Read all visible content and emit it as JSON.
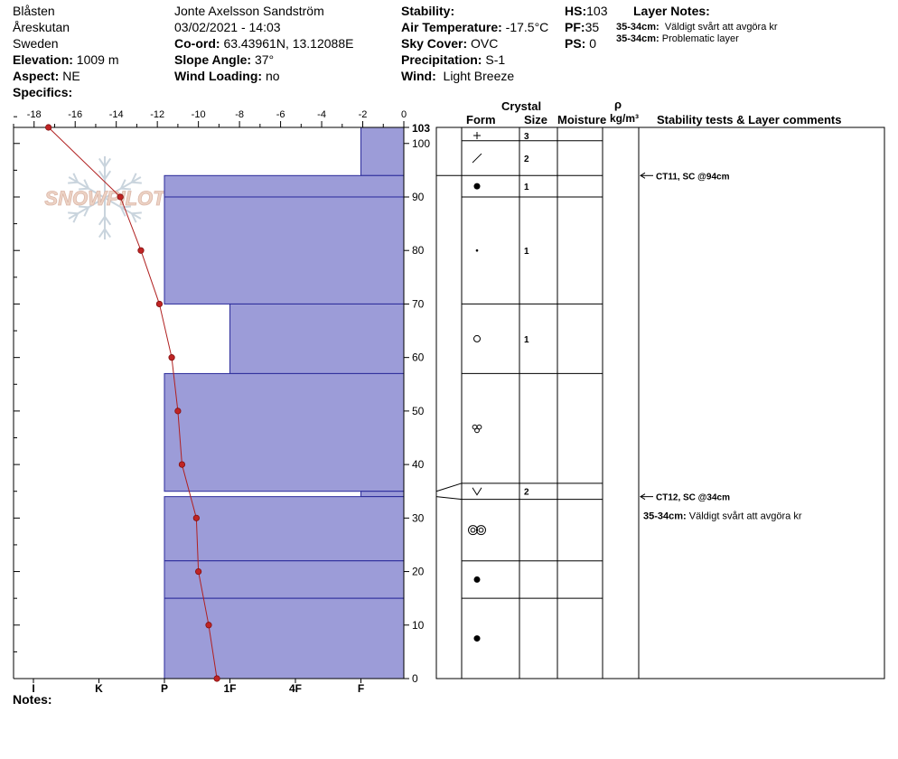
{
  "header": {
    "location": "Blåsten",
    "area": "Åreskutan",
    "country": "Sweden",
    "elevation_label": "Elevation:",
    "elevation": "1009 m",
    "aspect_label": "Aspect:",
    "aspect": "NE",
    "specifics_label": "Specifics:",
    "observer": "Jonte Axelsson Sandström",
    "datetime": "03/02/2021 - 14:03",
    "coord_label": "Co-ord:",
    "coord": "63.43961N, 13.12088E",
    "slope_label": "Slope Angle:",
    "slope": "37°",
    "wind_loading_label": "Wind Loading:",
    "wind_loading": "no",
    "stability_label": "Stability:",
    "stability": "",
    "air_temp_label": "Air Temperature:",
    "air_temp": "-17.5°C",
    "sky_label": "Sky Cover:",
    "sky": "OVC",
    "precip_label": "Precipitation:",
    "precip": "S-1",
    "wind_label": "Wind:",
    "wind": "Light Breeze",
    "hs_label": "HS:",
    "hs": "103",
    "pf_label": "PF:",
    "pf": "35",
    "ps_label": "PS:",
    "ps": "0",
    "layer_notes_label": "Layer Notes:",
    "layer_notes": [
      {
        "range": "35-34cm:",
        "text": "Väldigt svårt att avgöra kr"
      },
      {
        "range": "35-34cm:",
        "text": "Problematic layer"
      }
    ]
  },
  "watermark": "SNOWPILOT",
  "notes_label": "Notes:",
  "table": {
    "crystal_label": "Crystal",
    "form_label": "Form",
    "size_label": "Size",
    "moisture_label": "Moisture",
    "rho_label": "ρ",
    "density_unit": "kg/m³",
    "stability_label": "Stability tests & Layer comments"
  },
  "chart_data": {
    "type": "snow-profile",
    "temp_axis": {
      "ticks": [
        -18,
        -16,
        -14,
        -12,
        -10,
        -8,
        -6,
        -4,
        -2,
        0
      ],
      "labels": [
        "-18",
        "-16",
        "-14",
        "-12",
        "-10",
        "-8",
        "-6",
        "-4",
        "-2",
        "0"
      ],
      "range": [
        -19.0,
        0
      ]
    },
    "height_axis": {
      "range": [
        0,
        103
      ],
      "ticks": [
        0,
        10,
        20,
        30,
        40,
        50,
        60,
        70,
        80,
        90,
        100
      ],
      "labels": [
        "0",
        "10",
        "20",
        "30",
        "40",
        "50",
        "60",
        "70",
        "80",
        "90",
        "100"
      ],
      "top_label": "103"
    },
    "hardness_axis": {
      "labels": [
        "I",
        "K",
        "P",
        "1F",
        "4F",
        "F"
      ],
      "values": [
        6.5,
        5.5,
        4.5,
        3.5,
        2.5,
        1.5
      ]
    },
    "layers": [
      {
        "top": 103,
        "bottom": 94,
        "hardness": 1.5
      },
      {
        "top": 94,
        "bottom": 90,
        "hardness": 4.5
      },
      {
        "top": 90,
        "bottom": 70,
        "hardness": 4.5
      },
      {
        "top": 70,
        "bottom": 57,
        "hardness": 3.5
      },
      {
        "top": 57,
        "bottom": 35,
        "hardness": 4.5
      },
      {
        "top": 35,
        "bottom": 34,
        "hardness": 1.5
      },
      {
        "top": 34,
        "bottom": 22,
        "hardness": 4.5
      },
      {
        "top": 22,
        "bottom": 15,
        "hardness": 4.5
      },
      {
        "top": 15,
        "bottom": 0,
        "hardness": 4.5
      }
    ],
    "temperature_profile": [
      {
        "h": 103,
        "t": -17.3
      },
      {
        "h": 90,
        "t": -13.8
      },
      {
        "h": 80,
        "t": -12.8
      },
      {
        "h": 70,
        "t": -11.9
      },
      {
        "h": 60,
        "t": -11.3
      },
      {
        "h": 50,
        "t": -11.0
      },
      {
        "h": 40,
        "t": -10.8
      },
      {
        "h": 30,
        "t": -10.1
      },
      {
        "h": 20,
        "t": -10.0
      },
      {
        "h": 10,
        "t": -9.5
      },
      {
        "h": 0,
        "t": -9.1
      }
    ],
    "crystal_rows": [
      {
        "top": 103,
        "bottom": 100.5,
        "form": "plus",
        "size": "3"
      },
      {
        "top": 100.5,
        "bottom": 94,
        "form": "slash",
        "size": "2"
      },
      {
        "top": 94,
        "bottom": 90,
        "form": "dot",
        "size": "1"
      },
      {
        "top": 90,
        "bottom": 70,
        "form": "smalldot",
        "size": "1"
      },
      {
        "top": 70,
        "bottom": 57,
        "form": "circle",
        "size": "1"
      },
      {
        "top": 57,
        "bottom": 36.5,
        "form": "cluster",
        "size": ""
      },
      {
        "top": 36.5,
        "bottom": 33.5,
        "form": "vee",
        "size": "2"
      },
      {
        "top": 33.5,
        "bottom": 22,
        "form": "double-ring",
        "size": ""
      },
      {
        "top": 22,
        "bottom": 15,
        "form": "dot",
        "size": ""
      },
      {
        "top": 15,
        "bottom": 0,
        "form": "dot",
        "size": ""
      }
    ],
    "stability_tests": [
      {
        "h": 94,
        "text": "CT11, SC @94cm"
      },
      {
        "h": 34,
        "text": "CT12, SC @34cm"
      }
    ],
    "layer_comments": [
      {
        "h": 30.5,
        "range": "35-34cm:",
        "text": "Väldigt svårt att avgöra kr"
      }
    ]
  }
}
